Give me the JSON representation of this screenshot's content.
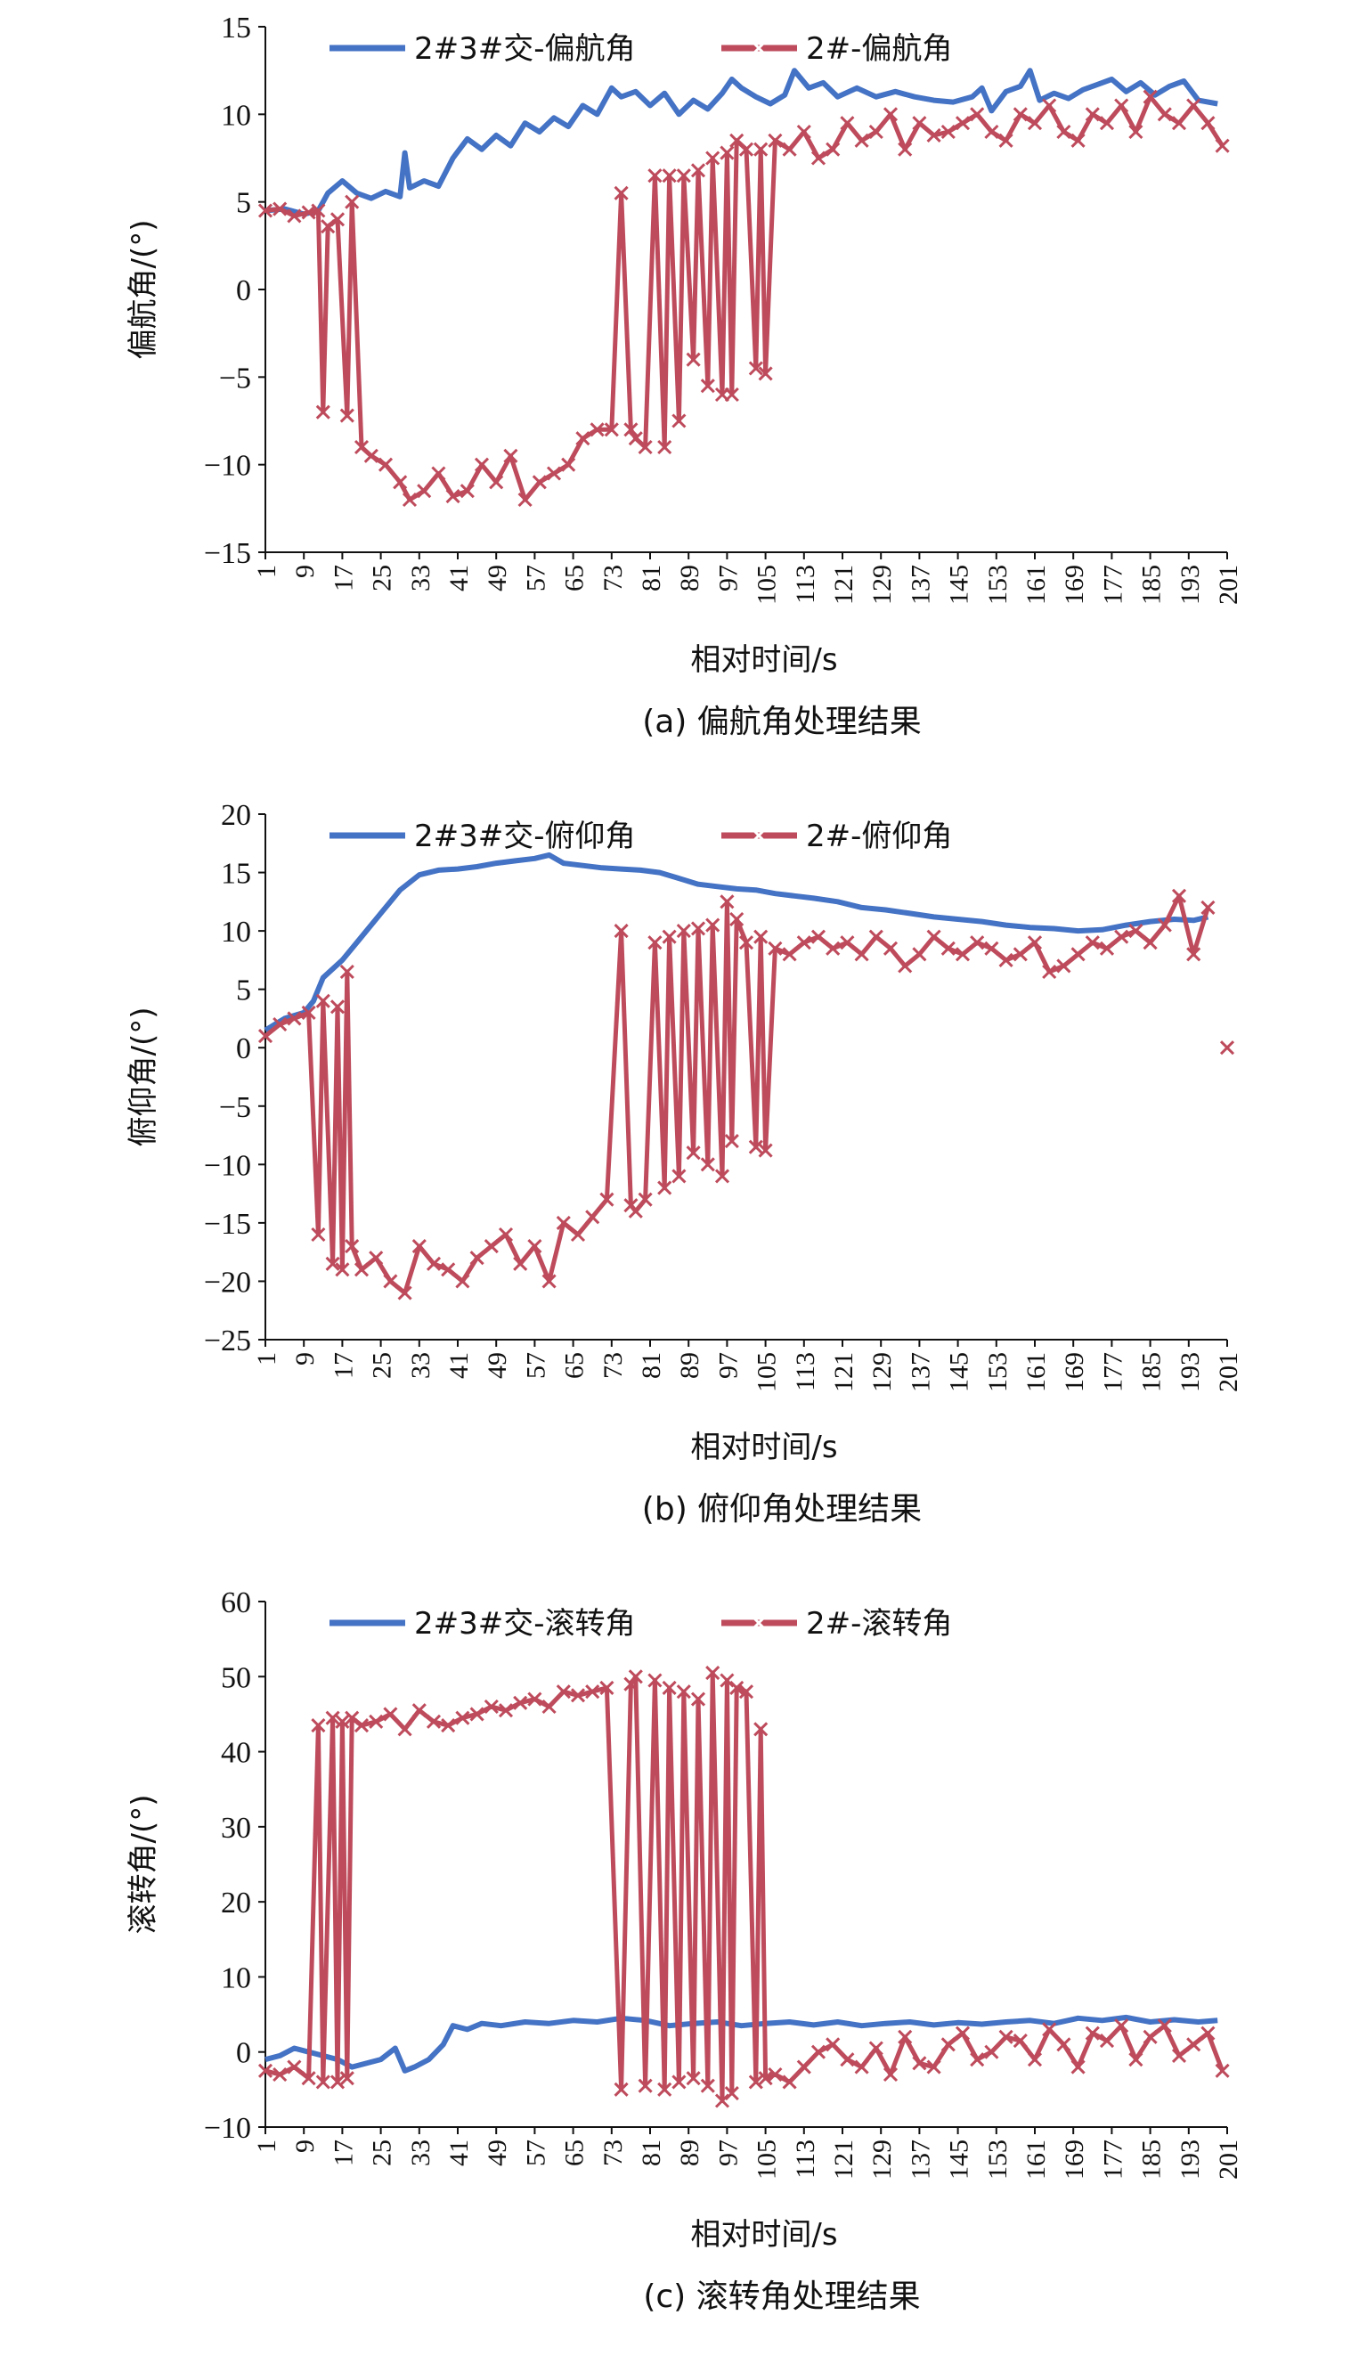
{
  "chart_data": [
    {
      "type": "line",
      "panel": "a",
      "caption": "(a) 偏航角处理结果",
      "xlabel": "相对时间/s",
      "ylabel": "偏航角/(°)",
      "ylim": [
        -15,
        15
      ],
      "yticks": [
        -15,
        -10,
        -5,
        0,
        5,
        10,
        15
      ],
      "xlim": [
        1,
        201
      ],
      "xticks": [
        1,
        9,
        17,
        25,
        33,
        41,
        49,
        57,
        65,
        73,
        81,
        89,
        97,
        105,
        113,
        121,
        129,
        137,
        145,
        153,
        161,
        169,
        177,
        185,
        193,
        201
      ],
      "legend_position": "top",
      "colors": {
        "blue": "#4472C4",
        "red": "#BE4B5C"
      },
      "series": [
        {
          "name": "2#3#交-偏航角",
          "marker": "none",
          "x": [
            1,
            5,
            9,
            12,
            14,
            17,
            20,
            23,
            26,
            29,
            30,
            31,
            34,
            37,
            40,
            43,
            46,
            49,
            52,
            55,
            58,
            61,
            64,
            67,
            70,
            73,
            75,
            78,
            81,
            84,
            87,
            90,
            93,
            96,
            98,
            100,
            103,
            106,
            109,
            111,
            114,
            117,
            120,
            124,
            128,
            132,
            136,
            140,
            144,
            148,
            150,
            152,
            155,
            158,
            160,
            162,
            165,
            168,
            171,
            174,
            177,
            180,
            183,
            186,
            189,
            192,
            195,
            199
          ],
          "y": [
            4.5,
            4.6,
            4.3,
            4.5,
            5.5,
            6.2,
            5.5,
            5.2,
            5.6,
            5.3,
            7.8,
            5.8,
            6.2,
            5.9,
            7.5,
            8.6,
            8.0,
            8.8,
            8.2,
            9.5,
            9.0,
            9.8,
            9.3,
            10.5,
            10.0,
            11.5,
            11.0,
            11.3,
            10.5,
            11.2,
            10.0,
            10.8,
            10.3,
            11.2,
            12.0,
            11.5,
            11.0,
            10.6,
            11.1,
            12.5,
            11.5,
            11.8,
            11.0,
            11.5,
            11.0,
            11.3,
            11.0,
            10.8,
            10.7,
            11.0,
            11.5,
            10.2,
            11.3,
            11.6,
            12.5,
            10.8,
            11.2,
            10.9,
            11.4,
            11.7,
            12.0,
            11.3,
            11.8,
            11.1,
            11.6,
            11.9,
            10.8,
            10.6
          ]
        },
        {
          "name": "2#-偏航角",
          "marker": "x",
          "x": [
            1,
            4,
            7,
            10,
            12,
            13,
            14,
            16,
            18,
            19,
            21,
            23,
            26,
            29,
            31,
            34,
            37,
            40,
            43,
            46,
            49,
            52,
            55,
            58,
            61,
            64,
            67,
            70,
            73,
            75,
            77,
            78,
            80,
            82,
            84,
            85,
            87,
            88,
            90,
            91,
            93,
            94,
            96,
            97,
            98,
            99,
            101,
            103,
            104,
            105,
            107,
            110,
            113,
            116,
            119,
            122,
            125,
            128,
            131,
            134,
            137,
            140,
            143,
            146,
            149,
            152,
            155,
            158,
            161,
            164,
            167,
            170,
            173,
            176,
            179,
            182,
            185,
            188,
            191,
            194,
            197,
            200
          ],
          "y": [
            4.5,
            4.6,
            4.2,
            4.4,
            4.5,
            -7.0,
            3.6,
            4.0,
            -7.2,
            5.0,
            -9.0,
            -9.5,
            -10.0,
            -11.0,
            -12.0,
            -11.5,
            -10.5,
            -11.8,
            -11.5,
            -10.0,
            -11.0,
            -9.5,
            -12.0,
            -11.0,
            -10.5,
            -10.0,
            -8.5,
            -8.0,
            -8.0,
            5.5,
            -8.0,
            -8.5,
            -9.0,
            6.5,
            -9.0,
            6.5,
            -7.5,
            6.5,
            -4.0,
            6.8,
            -5.5,
            7.5,
            -6.0,
            7.8,
            -6.0,
            8.5,
            8.0,
            -4.5,
            8.0,
            -4.8,
            8.5,
            8.0,
            9.0,
            7.5,
            8.0,
            9.5,
            8.5,
            9.0,
            10.0,
            8.0,
            9.5,
            8.8,
            9.0,
            9.5,
            10.0,
            9.0,
            8.5,
            10.0,
            9.5,
            10.5,
            9.0,
            8.5,
            10.0,
            9.5,
            10.5,
            9.0,
            11.0,
            10.0,
            9.5,
            10.5,
            9.5,
            8.2
          ]
        }
      ]
    },
    {
      "type": "line",
      "panel": "b",
      "caption": "(b) 俯仰角处理结果",
      "xlabel": "相对时间/s",
      "ylabel": "俯仰角/(°)",
      "ylim": [
        -25,
        20
      ],
      "yticks": [
        -25,
        -20,
        -15,
        -10,
        -5,
        0,
        5,
        10,
        15,
        20
      ],
      "xlim": [
        1,
        201
      ],
      "xticks": [
        1,
        9,
        17,
        25,
        33,
        41,
        49,
        57,
        65,
        73,
        81,
        89,
        97,
        105,
        113,
        121,
        129,
        137,
        145,
        153,
        161,
        169,
        177,
        185,
        193,
        201
      ],
      "legend_position": "top",
      "colors": {
        "blue": "#4472C4",
        "red": "#BE4B5C"
      },
      "series": [
        {
          "name": "2#3#交-俯仰角",
          "marker": "none",
          "x": [
            1,
            5,
            9,
            11,
            13,
            17,
            21,
            25,
            29,
            33,
            37,
            41,
            45,
            49,
            53,
            57,
            60,
            63,
            67,
            71,
            75,
            79,
            83,
            87,
            91,
            95,
            99,
            103,
            107,
            111,
            115,
            120,
            125,
            130,
            135,
            140,
            145,
            150,
            155,
            160,
            165,
            170,
            175,
            180,
            185,
            190,
            194,
            197
          ],
          "y": [
            1.5,
            2.5,
            3.0,
            4.0,
            6.0,
            7.5,
            9.5,
            11.5,
            13.5,
            14.8,
            15.2,
            15.3,
            15.5,
            15.8,
            16.0,
            16.2,
            16.5,
            15.8,
            15.6,
            15.4,
            15.3,
            15.2,
            15.0,
            14.5,
            14.0,
            13.8,
            13.6,
            13.5,
            13.2,
            13.0,
            12.8,
            12.5,
            12.0,
            11.8,
            11.5,
            11.2,
            11.0,
            10.8,
            10.5,
            10.3,
            10.2,
            10.0,
            10.1,
            10.5,
            10.8,
            11.0,
            10.9,
            11.2
          ]
        },
        {
          "name": "2#-俯仰角",
          "marker": "x",
          "x": [
            1,
            4,
            7,
            10,
            12,
            13,
            15,
            16,
            17,
            18,
            19,
            21,
            24,
            27,
            30,
            33,
            36,
            39,
            42,
            45,
            48,
            51,
            54,
            57,
            60,
            63,
            66,
            69,
            72,
            75,
            77,
            78,
            80,
            82,
            84,
            85,
            87,
            88,
            90,
            91,
            93,
            94,
            96,
            97,
            98,
            99,
            101,
            103,
            104,
            105,
            107,
            110,
            113,
            116,
            119,
            122,
            125,
            128,
            131,
            134,
            137,
            140,
            143,
            146,
            149,
            152,
            155,
            158,
            161,
            164,
            167,
            170,
            173,
            176,
            179,
            182,
            185,
            188,
            191,
            194,
            197
          ],
          "y": [
            1.0,
            2.0,
            2.5,
            3.0,
            -16.0,
            4.0,
            -18.5,
            3.5,
            -19.0,
            6.5,
            -17.0,
            -19.0,
            -18.0,
            -20.0,
            -21.0,
            -17.0,
            -18.5,
            -19.0,
            -20.0,
            -18.0,
            -17.0,
            -16.0,
            -18.5,
            -17.0,
            -20.0,
            -15.0,
            -16.0,
            -14.5,
            -13.0,
            10.0,
            -13.5,
            -14.0,
            -13.0,
            9.0,
            -12.0,
            9.5,
            -11.0,
            10.0,
            -9.0,
            10.2,
            -10.0,
            10.5,
            -11.0,
            12.5,
            -8.0,
            11.0,
            9.0,
            -8.5,
            9.5,
            -8.8,
            8.5,
            8.0,
            9.0,
            9.5,
            8.5,
            9.0,
            8.0,
            9.5,
            8.5,
            7.0,
            8.0,
            9.5,
            8.5,
            8.0,
            9.0,
            8.5,
            7.5,
            8.0,
            9.0,
            6.5,
            7.0,
            8.0,
            9.0,
            8.5,
            9.5,
            10.0,
            9.0,
            10.5,
            13.0,
            8.0,
            12.0
          ]
        },
        {
          "name": "",
          "marker": "x",
          "x": [
            201
          ],
          "y": [
            0
          ]
        }
      ]
    },
    {
      "type": "line",
      "panel": "c",
      "caption": "(c) 滚转角处理结果",
      "xlabel": "相对时间/s",
      "ylabel": "滚转角/(°)",
      "ylim": [
        -10,
        60
      ],
      "yticks": [
        -10,
        0,
        10,
        20,
        30,
        40,
        50,
        60
      ],
      "xlim": [
        1,
        201
      ],
      "xticks": [
        1,
        9,
        17,
        25,
        33,
        41,
        49,
        57,
        65,
        73,
        81,
        89,
        97,
        105,
        113,
        121,
        129,
        137,
        145,
        153,
        161,
        169,
        177,
        185,
        193,
        201
      ],
      "legend_position": "top",
      "colors": {
        "blue": "#4472C4",
        "red": "#BE4B5C"
      },
      "series": [
        {
          "name": "2#3#交-滚转角",
          "marker": "none",
          "x": [
            1,
            4,
            7,
            10,
            13,
            16,
            19,
            22,
            25,
            28,
            30,
            32,
            35,
            38,
            40,
            43,
            46,
            50,
            55,
            60,
            65,
            70,
            75,
            80,
            85,
            90,
            95,
            100,
            105,
            110,
            115,
            120,
            125,
            130,
            135,
            140,
            145,
            150,
            155,
            160,
            165,
            170,
            175,
            180,
            185,
            190,
            195,
            199
          ],
          "y": [
            -1.0,
            -0.5,
            0.5,
            0.0,
            -0.5,
            -1.0,
            -2.0,
            -1.5,
            -1.0,
            0.5,
            -2.5,
            -2.0,
            -1.0,
            1.0,
            3.5,
            3.0,
            3.8,
            3.5,
            4.0,
            3.8,
            4.2,
            4.0,
            4.5,
            4.2,
            3.5,
            3.8,
            4.0,
            3.5,
            3.8,
            4.0,
            3.6,
            4.0,
            3.5,
            3.8,
            4.0,
            3.6,
            3.9,
            3.7,
            4.0,
            4.2,
            3.8,
            4.5,
            4.2,
            4.6,
            4.0,
            4.3,
            4.0,
            4.2
          ]
        },
        {
          "name": "2#-滚转角",
          "marker": "x",
          "x": [
            1,
            4,
            7,
            10,
            12,
            13,
            15,
            16,
            17,
            18,
            19,
            21,
            24,
            27,
            30,
            33,
            36,
            39,
            42,
            45,
            48,
            51,
            54,
            57,
            60,
            63,
            66,
            69,
            72,
            75,
            77,
            78,
            80,
            82,
            84,
            85,
            87,
            88,
            90,
            91,
            93,
            94,
            96,
            97,
            98,
            99,
            101,
            103,
            104,
            105,
            107,
            110,
            113,
            116,
            119,
            122,
            125,
            128,
            131,
            134,
            137,
            140,
            143,
            146,
            149,
            152,
            155,
            158,
            161,
            164,
            167,
            170,
            173,
            176,
            179,
            182,
            185,
            188,
            191,
            194,
            197,
            200
          ],
          "y": [
            -2.5,
            -3.0,
            -2.0,
            -3.5,
            43.5,
            -4.0,
            44.5,
            -4.0,
            44.0,
            -3.5,
            44.5,
            43.5,
            44.0,
            45.0,
            43.0,
            45.5,
            44.0,
            43.5,
            44.5,
            45.0,
            46.0,
            45.5,
            46.5,
            47.0,
            46.0,
            48.0,
            47.5,
            48.0,
            48.5,
            -5.0,
            49.0,
            50.0,
            -4.5,
            49.5,
            -5.0,
            48.5,
            -4.0,
            48.0,
            -3.5,
            47.0,
            -4.5,
            50.5,
            -6.5,
            49.5,
            -5.5,
            48.5,
            48.0,
            -4.0,
            43.0,
            -3.5,
            -3.0,
            -4.0,
            -2.0,
            0.0,
            1.0,
            -1.0,
            -2.0,
            0.5,
            -3.0,
            2.0,
            -1.5,
            -2.0,
            1.0,
            2.5,
            -1.0,
            0.0,
            2.0,
            1.5,
            -1.0,
            3.0,
            1.0,
            -2.0,
            2.5,
            1.5,
            3.5,
            -1.0,
            2.0,
            3.5,
            -0.5,
            1.0,
            2.5,
            -2.5
          ]
        }
      ]
    }
  ]
}
